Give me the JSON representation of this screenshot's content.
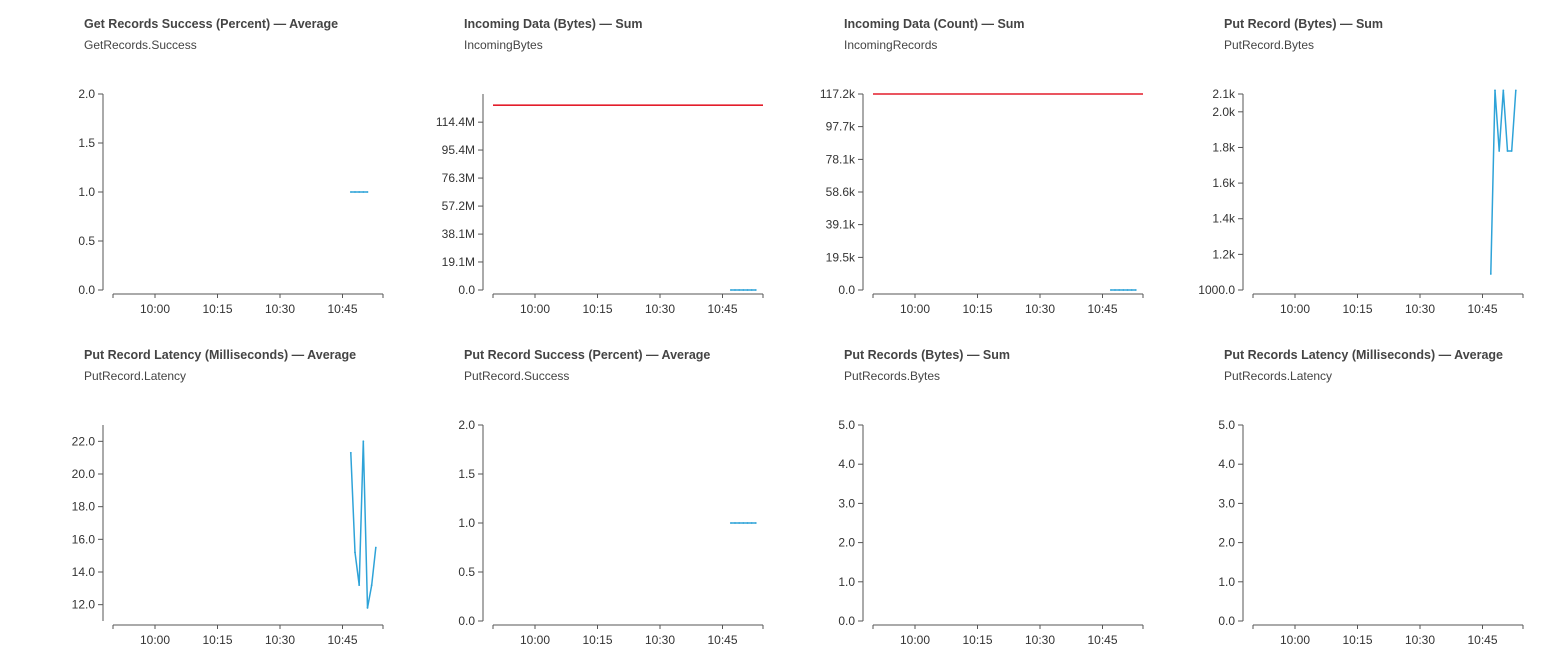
{
  "x_axis_ticks": [
    "10:00",
    "10:15",
    "10:30",
    "10:45"
  ],
  "colors": {
    "series": "#2ea3d8",
    "threshold": "#e31d2b",
    "axis": "#555555"
  },
  "panels": [
    {
      "title": "Get Records Success (Percent) — Average",
      "metric": "GetRecords.Success",
      "chart_data": {
        "type": "line",
        "ylim": [
          0,
          2.0
        ],
        "yticks": [
          "0.0",
          "0.5",
          "1.0",
          "1.5",
          "2.0"
        ],
        "x_ticks": [
          "10:00",
          "10:15",
          "10:30",
          "10:45"
        ],
        "series": [
          {
            "x": [
              "10:47",
              "10:48",
              "10:49",
              "10:50",
              "10:51"
            ],
            "values": [
              1.0,
              1.0,
              1.0,
              1.0,
              1.0
            ]
          }
        ]
      }
    },
    {
      "title": "Incoming Data (Bytes) — Sum",
      "metric": "IncomingBytes",
      "chart_data": {
        "type": "line",
        "ylim": [
          0,
          133600000
        ],
        "yticks": [
          "0.0",
          "19.1M",
          "38.1M",
          "57.2M",
          "76.3M",
          "95.4M",
          "114.4M"
        ],
        "x_ticks": [
          "10:00",
          "10:15",
          "10:30",
          "10:45"
        ],
        "threshold": 126000000,
        "series": [
          {
            "x": [
              "10:47",
              "10:48",
              "10:49",
              "10:50",
              "10:51",
              "10:52",
              "10:53"
            ],
            "values": [
              0,
              0,
              0,
              0,
              0,
              0,
              0
            ]
          }
        ]
      }
    },
    {
      "title": "Incoming Data (Count) — Sum",
      "metric": "IncomingRecords",
      "chart_data": {
        "type": "line",
        "ylim": [
          0,
          117200
        ],
        "yticks": [
          "0.0",
          "19.5k",
          "39.1k",
          "58.6k",
          "78.1k",
          "97.7k",
          "117.2k"
        ],
        "x_ticks": [
          "10:00",
          "10:15",
          "10:30",
          "10:45"
        ],
        "threshold": 117200,
        "series": [
          {
            "x": [
              "10:47",
              "10:48",
              "10:49",
              "10:50",
              "10:51",
              "10:52",
              "10:53"
            ],
            "values": [
              0,
              0,
              0,
              0,
              0,
              0,
              0
            ]
          }
        ]
      }
    },
    {
      "title": "Put Record (Bytes) — Sum",
      "metric": "PutRecord.Bytes",
      "chart_data": {
        "type": "line",
        "ylim": [
          1000,
          2100
        ],
        "yticks": [
          "1000.0",
          "1.2k",
          "1.4k",
          "1.6k",
          "1.8k",
          "2.0k",
          "2.1k"
        ],
        "ytick_values": [
          1000,
          1200,
          1400,
          1600,
          1800,
          2000,
          2100
        ],
        "x_ticks": [
          "10:00",
          "10:15",
          "10:30",
          "10:45"
        ],
        "series": [
          {
            "x": [
              "10:47",
              "10:48",
              "10:49",
              "10:50",
              "10:51",
              "10:52",
              "10:53"
            ],
            "values": [
              1090,
              2120,
              1780,
              2120,
              1780,
              1780,
              2120
            ]
          }
        ]
      }
    },
    {
      "title": "Put Record Latency (Milliseconds) — Average",
      "metric": "PutRecord.Latency",
      "chart_data": {
        "type": "line",
        "ylim": [
          11.0,
          23.0
        ],
        "yticks": [
          "12.0",
          "14.0",
          "16.0",
          "18.0",
          "20.0",
          "22.0"
        ],
        "ytick_values": [
          12,
          14,
          16,
          18,
          20,
          22
        ],
        "x_ticks": [
          "10:00",
          "10:15",
          "10:30",
          "10:45"
        ],
        "series": [
          {
            "x": [
              "10:47",
              "10:48",
              "10:49",
              "10:50",
              "10:51",
              "10:52",
              "10:53"
            ],
            "values": [
              21.3,
              15.2,
              13.2,
              22.0,
              11.8,
              13.2,
              15.5
            ]
          }
        ]
      }
    },
    {
      "title": "Put Record Success (Percent) — Average",
      "metric": "PutRecord.Success",
      "chart_data": {
        "type": "line",
        "ylim": [
          0,
          2.0
        ],
        "yticks": [
          "0.0",
          "0.5",
          "1.0",
          "1.5",
          "2.0"
        ],
        "x_ticks": [
          "10:00",
          "10:15",
          "10:30",
          "10:45"
        ],
        "series": [
          {
            "x": [
              "10:47",
              "10:48",
              "10:49",
              "10:50",
              "10:51",
              "10:52",
              "10:53"
            ],
            "values": [
              1.0,
              1.0,
              1.0,
              1.0,
              1.0,
              1.0,
              1.0
            ]
          }
        ]
      }
    },
    {
      "title": "Put Records (Bytes) — Sum",
      "metric": "PutRecords.Bytes",
      "chart_data": {
        "type": "line",
        "ylim": [
          0,
          5.0
        ],
        "yticks": [
          "0.0",
          "1.0",
          "2.0",
          "3.0",
          "4.0",
          "5.0"
        ],
        "x_ticks": [
          "10:00",
          "10:15",
          "10:30",
          "10:45"
        ],
        "series": []
      }
    },
    {
      "title": "Put Records Latency (Milliseconds) — Average",
      "metric": "PutRecords.Latency",
      "chart_data": {
        "type": "line",
        "ylim": [
          0,
          5.0
        ],
        "yticks": [
          "0.0",
          "1.0",
          "2.0",
          "3.0",
          "4.0",
          "5.0"
        ],
        "x_ticks": [
          "10:00",
          "10:15",
          "10:30",
          "10:45"
        ],
        "series": []
      }
    }
  ]
}
